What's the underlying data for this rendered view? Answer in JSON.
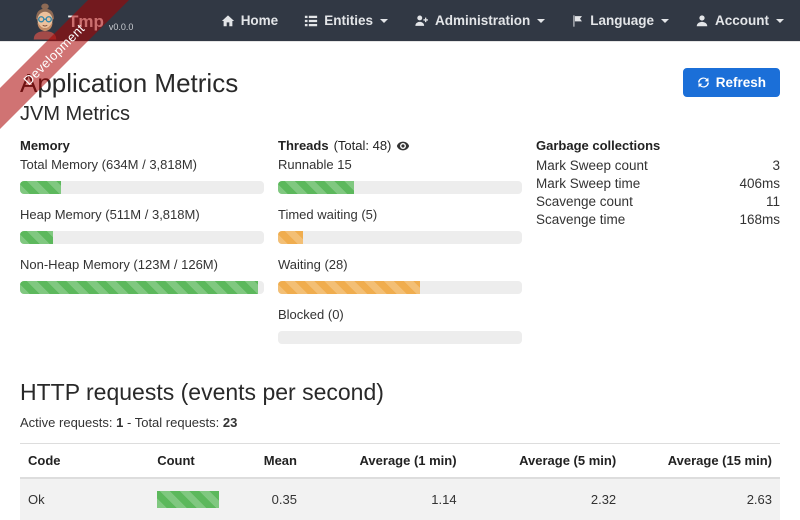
{
  "ribbon": {
    "label": "Development"
  },
  "navbar": {
    "brand": {
      "name": "Tmp",
      "version": "v0.0.0"
    },
    "items": [
      {
        "label": "Home"
      },
      {
        "label": "Entities"
      },
      {
        "label": "Administration"
      },
      {
        "label": "Language"
      },
      {
        "label": "Account"
      }
    ]
  },
  "page": {
    "title": "Application Metrics",
    "refresh_label": "Refresh",
    "jvm_heading": "JVM Metrics"
  },
  "memory": {
    "heading": "Memory",
    "metrics": [
      {
        "label": "Total Memory (634M / 3,818M)",
        "percent": 16.6,
        "color": "green"
      },
      {
        "label": "Heap Memory (511M / 3,818M)",
        "percent": 13.4,
        "color": "green"
      },
      {
        "label": "Non-Heap Memory (123M / 126M)",
        "percent": 97.6,
        "color": "green"
      }
    ]
  },
  "threads": {
    "heading": "Threads",
    "total_label": "(Total: 48)",
    "metrics": [
      {
        "label": "Runnable 15",
        "percent": 31.25,
        "color": "green"
      },
      {
        "label": "Timed waiting (5)",
        "percent": 10.4,
        "color": "orange"
      },
      {
        "label": "Waiting (28)",
        "percent": 58.3,
        "color": "orange"
      },
      {
        "label": "Blocked (0)",
        "percent": 0,
        "color": "green"
      }
    ]
  },
  "garbage": {
    "heading": "Garbage collections",
    "rows": [
      {
        "label": "Mark Sweep count",
        "value": "3"
      },
      {
        "label": "Mark Sweep time",
        "value": "406ms"
      },
      {
        "label": "Scavenge count",
        "value": "11"
      },
      {
        "label": "Scavenge time",
        "value": "168ms"
      }
    ]
  },
  "http": {
    "heading": "HTTP requests (events per second)",
    "active_label": "Active requests:",
    "active_value": "1",
    "separator": "-",
    "total_label": "Total requests:",
    "total_value": "23",
    "table": {
      "headers": [
        "Code",
        "Count",
        "Mean",
        "Average (1 min)",
        "Average (5 min)",
        "Average (15 min)"
      ],
      "rows": [
        {
          "code": "Ok",
          "count_percent": 100,
          "mean": "0.35",
          "avg1": "1.14",
          "avg5": "2.32",
          "avg15": "2.63"
        }
      ]
    }
  },
  "colors": {
    "navbar_bg": "#313844",
    "ribbon_bg": "rgba(170,0,0,0.55)",
    "primary_button": "#1b6fd8",
    "success_bar": "#5cb85c",
    "warning_bar": "#f0ad4e",
    "progress_track": "#ededed",
    "striped_row_bg": "#f2f2f2"
  }
}
